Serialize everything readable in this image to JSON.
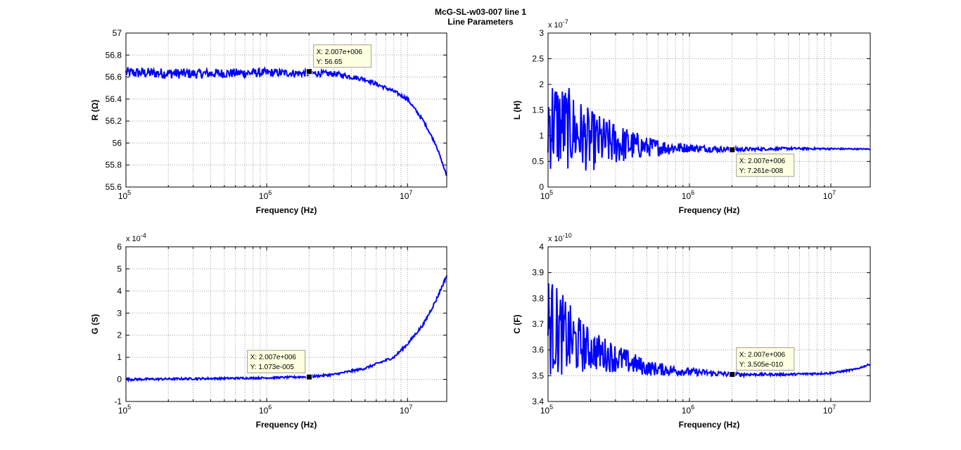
{
  "figure": {
    "title_line1": "McG-SL-w03-007 line 1",
    "title_line2": "Line Parameters"
  },
  "colors": {
    "line": "#0000ff",
    "grid": "#a0a0a0",
    "datatip_bg": "#ffffe1",
    "datatip_border": "#a0a090"
  },
  "chart_data": [
    {
      "type": "line",
      "ylabel": "R (Ω)",
      "xlabel": "Frequency (Hz)",
      "xscale": "log",
      "xlim": [
        100000,
        19000000
      ],
      "ylim": [
        55.6,
        57
      ],
      "yticks": [
        "55.6",
        "55.8",
        "56",
        "56.2",
        "56.4",
        "56.6",
        "56.8",
        "57"
      ],
      "xticks": [
        {
          "base": "10",
          "exp": "5"
        },
        {
          "base": "10",
          "exp": "6"
        },
        {
          "base": "10",
          "exp": "7"
        }
      ],
      "exponent_label": "",
      "grid": true,
      "series_shape": [
        [
          100000,
          56.64
        ],
        [
          300000,
          56.63
        ],
        [
          1000000,
          56.64
        ],
        [
          3000000,
          56.63
        ],
        [
          5000000,
          56.58
        ],
        [
          8000000,
          56.47
        ],
        [
          10000000,
          56.4
        ],
        [
          13000000,
          56.2
        ],
        [
          16000000,
          55.98
        ],
        [
          19000000,
          55.7
        ]
      ],
      "noise": [
        [
          100000,
          0.05
        ],
        [
          1000000,
          0.04
        ],
        [
          5000000,
          0.02
        ],
        [
          19000000,
          0.01
        ]
      ],
      "datatip": {
        "x": 2007000,
        "y": 56.65,
        "x_text": "X: 2.007e+006",
        "y_text": "Y: 56.65",
        "placement": "top-right"
      }
    },
    {
      "type": "line",
      "ylabel": "L (H)",
      "xlabel": "Frequency (Hz)",
      "xscale": "log",
      "xlim": [
        100000,
        19000000
      ],
      "ylim": [
        0,
        3
      ],
      "yticks": [
        "0",
        "0.5",
        "1",
        "1.5",
        "2",
        "2.5",
        "3"
      ],
      "xticks": [
        {
          "base": "10",
          "exp": "5"
        },
        {
          "base": "10",
          "exp": "6"
        },
        {
          "base": "10",
          "exp": "7"
        }
      ],
      "exponent_label": "x 10",
      "exponent_power": "-7",
      "grid": true,
      "series_shape": [
        [
          100000,
          1.3
        ],
        [
          150000,
          1.1
        ],
        [
          200000,
          0.9
        ],
        [
          300000,
          0.85
        ],
        [
          500000,
          0.78
        ],
        [
          1000000,
          0.76
        ],
        [
          2000000,
          0.73
        ],
        [
          5000000,
          0.75
        ],
        [
          19000000,
          0.74
        ]
      ],
      "noise": [
        [
          100000,
          1.0
        ],
        [
          200000,
          0.6
        ],
        [
          500000,
          0.2
        ],
        [
          1000000,
          0.08
        ],
        [
          3000000,
          0.03
        ],
        [
          19000000,
          0.01
        ]
      ],
      "datatip": {
        "x": 2007000,
        "y": 0.7261,
        "x_text": "X: 2.007e+006",
        "y_text": "Y: 7.261e-008",
        "placement": "bottom-right"
      }
    },
    {
      "type": "line",
      "ylabel": "G (S)",
      "xlabel": "Frequency (Hz)",
      "xscale": "log",
      "xlim": [
        100000,
        19000000
      ],
      "ylim": [
        -1,
        6
      ],
      "yticks": [
        "-1",
        "0",
        "1",
        "2",
        "3",
        "4",
        "5",
        "6"
      ],
      "xticks": [
        {
          "base": "10",
          "exp": "5"
        },
        {
          "base": "10",
          "exp": "6"
        },
        {
          "base": "10",
          "exp": "7"
        }
      ],
      "exponent_label": "x 10",
      "exponent_power": "-4",
      "grid": true,
      "series_shape": [
        [
          100000,
          0.0
        ],
        [
          300000,
          0.03
        ],
        [
          1000000,
          0.07
        ],
        [
          2000000,
          0.12
        ],
        [
          3000000,
          0.22
        ],
        [
          5000000,
          0.5
        ],
        [
          8000000,
          1.0
        ],
        [
          10000000,
          1.6
        ],
        [
          13000000,
          2.5
        ],
        [
          16000000,
          3.6
        ],
        [
          19000000,
          4.7
        ]
      ],
      "noise": [
        [
          100000,
          0.05
        ],
        [
          1000000,
          0.04
        ],
        [
          10000000,
          0.06
        ],
        [
          19000000,
          0.08
        ]
      ],
      "datatip": {
        "x": 2007000,
        "y": 0.1073,
        "x_text": "X: 2.007e+006",
        "y_text": "Y: 1.073e-005",
        "placement": "top-left"
      }
    },
    {
      "type": "line",
      "ylabel": "C (F)",
      "xlabel": "Frequency (Hz)",
      "xscale": "log",
      "xlim": [
        100000,
        19000000
      ],
      "ylim": [
        3.4,
        4
      ],
      "yticks": [
        "3.4",
        "3.5",
        "3.6",
        "3.7",
        "3.8",
        "3.9",
        "4"
      ],
      "xticks": [
        {
          "base": "10",
          "exp": "5"
        },
        {
          "base": "10",
          "exp": "6"
        },
        {
          "base": "10",
          "exp": "7"
        }
      ],
      "exponent_label": "x 10",
      "exponent_power": "-10",
      "grid": true,
      "series_shape": [
        [
          100000,
          3.7
        ],
        [
          150000,
          3.63
        ],
        [
          200000,
          3.6
        ],
        [
          300000,
          3.57
        ],
        [
          500000,
          3.53
        ],
        [
          1000000,
          3.515
        ],
        [
          2000000,
          3.505
        ],
        [
          5000000,
          3.505
        ],
        [
          10000000,
          3.51
        ],
        [
          15000000,
          3.525
        ],
        [
          19000000,
          3.545
        ]
      ],
      "noise": [
        [
          100000,
          0.2
        ],
        [
          200000,
          0.08
        ],
        [
          500000,
          0.03
        ],
        [
          1000000,
          0.015
        ],
        [
          3000000,
          0.005
        ],
        [
          19000000,
          0.003
        ]
      ],
      "datatip": {
        "x": 2007000,
        "y": 3.505,
        "x_text": "X: 2.007e+006",
        "y_text": "Y: 3.505e-010",
        "placement": "top-right"
      }
    }
  ]
}
